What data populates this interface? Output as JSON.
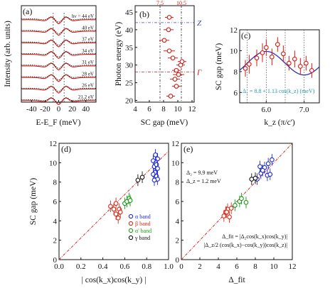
{
  "chart_data": [
    {
      "id": "a",
      "panel_label": "(a)",
      "type": "line",
      "xlabel": "E-E_F (meV)",
      "ylabel": "Intensity (arb. units)",
      "xticks": [
        -40,
        -20,
        0,
        20,
        40
      ],
      "xlim": [
        -55,
        55
      ],
      "legend": "none",
      "curve_labels": [
        "hν = 44 eV",
        "40 eV",
        "37 eV",
        "34 eV",
        "31 eV",
        "28 eV",
        "26 eV",
        "21.2 eV"
      ],
      "series_styles": [
        "solid red (symmetrized EDC)",
        "dotted black (fit)"
      ],
      "gap_markers": [
        -8,
        8
      ]
    },
    {
      "id": "b",
      "panel_label": "(b)",
      "type": "scatter",
      "xlabel": "SC gap (meV)",
      "ylabel": "Photon energy (eV)",
      "xlim": [
        4,
        12.3
      ],
      "ylim": [
        19.5,
        46.8
      ],
      "xticks": [
        4,
        6,
        8,
        10,
        12
      ],
      "yticks": [
        20,
        25,
        30,
        35,
        40,
        45
      ],
      "top_ticks": [
        "7.5",
        "10.5"
      ],
      "top_tick_values": [
        7.5,
        10.5
      ],
      "hlines": [
        {
          "y": 42,
          "label": "Z"
        },
        {
          "y": 28,
          "label": "Γ"
        }
      ],
      "vlines": [
        7.5,
        10.5
      ],
      "points": [
        {
          "x": 9.0,
          "y": 21.2,
          "xerr": 0.6
        },
        {
          "x": 9.8,
          "y": 24,
          "xerr": 0.6
        },
        {
          "x": 9.6,
          "y": 26,
          "xerr": 0.7
        },
        {
          "x": 10.1,
          "y": 27.3,
          "xerr": 0.8
        },
        {
          "x": 9.8,
          "y": 28.5,
          "xerr": 0.6
        },
        {
          "x": 10.4,
          "y": 30,
          "xerr": 0.6
        },
        {
          "x": 10.6,
          "y": 31,
          "xerr": 0.6
        },
        {
          "x": 9.3,
          "y": 32,
          "xerr": 0.7
        },
        {
          "x": 8.8,
          "y": 34,
          "xerr": 0.8
        },
        {
          "x": 8.1,
          "y": 37,
          "xerr": 0.7
        },
        {
          "x": 8.7,
          "y": 40,
          "xerr": 0.7
        },
        {
          "x": 8.8,
          "y": 43.5,
          "xerr": 0.6
        }
      ]
    },
    {
      "id": "c",
      "panel_label": "(c)",
      "type": "scatter",
      "xlabel": "k_z (π/c')",
      "ylabel": "SC gap (meV)",
      "xlim": [
        5.3,
        7.4
      ],
      "ylim": [
        5,
        12
      ],
      "xticks": [
        6.0,
        7.0
      ],
      "yticks": [
        6,
        8,
        10,
        12
      ],
      "annotation": "Δ₁ = 8.8 + 1.13 cos(k_z) (meV)",
      "fit": {
        "a": 8.8,
        "b": 1.13
      },
      "vlines": [
        5.5,
        6.0,
        6.5,
        7.0
      ],
      "points": [
        {
          "x": 5.45,
          "y": 8.3,
          "yerr": 0.8
        },
        {
          "x": 5.55,
          "y": 8.7,
          "yerr": 0.9
        },
        {
          "x": 5.75,
          "y": 9.3,
          "yerr": 0.8
        },
        {
          "x": 5.9,
          "y": 9.8,
          "yerr": 0.9
        },
        {
          "x": 6.0,
          "y": 10.3,
          "yerr": 0.8
        },
        {
          "x": 6.15,
          "y": 9.4,
          "yerr": 0.8
        },
        {
          "x": 6.3,
          "y": 10.6,
          "yerr": 0.7
        },
        {
          "x": 6.45,
          "y": 9.7,
          "yerr": 0.8
        },
        {
          "x": 6.6,
          "y": 8.8,
          "yerr": 0.7
        },
        {
          "x": 6.75,
          "y": 9.2,
          "yerr": 0.8
        },
        {
          "x": 6.9,
          "y": 8.5,
          "yerr": 0.8
        },
        {
          "x": 7.05,
          "y": 8.8,
          "yerr": 0.7
        },
        {
          "x": 7.2,
          "y": 8.1,
          "yerr": 0.7
        }
      ]
    },
    {
      "id": "d",
      "panel_label": "(d)",
      "type": "scatter",
      "xlabel": "| cos(k_x)cos(k_y) |",
      "ylabel": "SC gap (meV)",
      "xlim": [
        0,
        1
      ],
      "ylim": [
        0,
        12
      ],
      "xticks": [
        0.0,
        0.2,
        0.4,
        0.6,
        0.8,
        1.0
      ],
      "yticks": [
        0,
        2,
        4,
        6,
        8,
        10,
        12
      ],
      "line": {
        "x": [
          0,
          1
        ],
        "y": [
          0,
          11.2
        ]
      },
      "legend_position": "bottom-right",
      "series": [
        {
          "name": "α band",
          "color": "#1f2bd6",
          "points": [
            [
              0.86,
              10.2
            ],
            [
              0.87,
              9.6
            ],
            [
              0.88,
              9.0
            ],
            [
              0.89,
              8.6
            ],
            [
              0.9,
              8.3
            ],
            [
              0.86,
              8.8
            ],
            [
              0.9,
              10.4
            ],
            [
              0.89,
              9.8
            ],
            [
              0.87,
              8.2
            ],
            [
              0.9,
              9.4
            ],
            [
              0.88,
              10.8
            ]
          ]
        },
        {
          "name": "β band",
          "color": "#dd2a1a",
          "points": [
            [
              0.47,
              5.5
            ],
            [
              0.5,
              5.2
            ],
            [
              0.52,
              4.7
            ],
            [
              0.54,
              4.3
            ],
            [
              0.55,
              5.2
            ],
            [
              0.56,
              4.9
            ],
            [
              0.52,
              5.8
            ]
          ]
        },
        {
          "name": "α' band",
          "color": "#1a9a1a",
          "points": [
            [
              0.6,
              5.8
            ],
            [
              0.62,
              6.0
            ],
            [
              0.64,
              6.3
            ],
            [
              0.65,
              6.1
            ]
          ]
        },
        {
          "name": "γ band",
          "color": "#111111",
          "points": [
            [
              0.72,
              8.2
            ],
            [
              0.76,
              8.5
            ]
          ]
        }
      ]
    },
    {
      "id": "e",
      "panel_label": "(e)",
      "type": "scatter",
      "xlabel": "Δ_fit",
      "ylabel": "",
      "xlim": [
        0,
        12
      ],
      "ylim": [
        0,
        12
      ],
      "xticks": [
        0,
        2,
        4,
        6,
        8,
        10,
        12
      ],
      "yticks": [
        0,
        2,
        4,
        6,
        8,
        10,
        12
      ],
      "line": {
        "x": [
          0,
          12
        ],
        "y": [
          0,
          12
        ]
      },
      "annotations": [
        "Δ₂ = 9.9 meV",
        "Δ_z = 1.2 meV",
        "Δ_fit = |Δ₂cos(k_x)cos(k_y)|",
        "|Δ_z/2 (cos(k_x)−cos(k_y))cos(k_z)|"
      ],
      "series": [
        {
          "name": "α band",
          "color": "#1f2bd6",
          "points": [
            [
              8.2,
              8.3
            ],
            [
              8.6,
              8.9
            ],
            [
              9.0,
              9.5
            ],
            [
              9.4,
              9.9
            ],
            [
              9.8,
              10.3
            ],
            [
              8.5,
              9.6
            ],
            [
              9.3,
              8.7
            ],
            [
              8.8,
              9.2
            ],
            [
              9.6,
              8.8
            ]
          ]
        },
        {
          "name": "β band",
          "color": "#dd2a1a",
          "points": [
            [
              4.6,
              4.5
            ],
            [
              4.8,
              4.9
            ],
            [
              5.0,
              5.2
            ],
            [
              5.2,
              4.4
            ],
            [
              5.4,
              5.3
            ],
            [
              4.9,
              4.9
            ]
          ]
        },
        {
          "name": "α' band",
          "color": "#1a9a1a",
          "points": [
            [
              5.8,
              5.6
            ],
            [
              6.3,
              6.0
            ],
            [
              6.5,
              6.3
            ],
            [
              7.0,
              5.9
            ]
          ]
        },
        {
          "name": "γ band",
          "color": "#111111",
          "points": [
            [
              7.6,
              8.3
            ],
            [
              8.0,
              8.4
            ]
          ]
        }
      ]
    }
  ]
}
